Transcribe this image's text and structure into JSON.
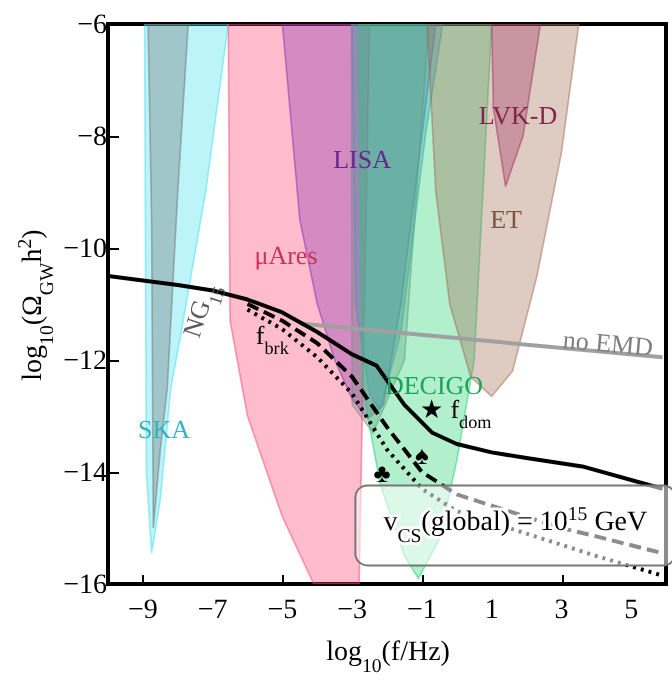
{
  "chart_data": {
    "type": "line",
    "xlabel": "log$_{10}$(f/Hz)",
    "ylabel": "log$_{10}$(Ω$_{GW}$h$^{2}$)",
    "xlim": [
      -10,
      6
    ],
    "ylim": [
      -16,
      -6
    ],
    "xticks": [
      -9,
      -7,
      -5,
      -3,
      -1,
      1,
      3,
      5
    ],
    "yticks": [
      -16,
      -14,
      -12,
      -10,
      -8,
      -6
    ],
    "grid": false,
    "series": [
      {
        "name": "SKA",
        "type": "area",
        "color": "#40e0f0",
        "x": [
          -8.95,
          -8.9,
          -8.75,
          -8.5,
          -8.2,
          -7.9,
          -7.2,
          -6.55
        ],
        "values": [
          -6,
          -14,
          -15.45,
          -14.5,
          -12.5,
          -11.5,
          -9,
          -6
        ]
      },
      {
        "name": "NG$_{15}$",
        "type": "area",
        "color": "#707070",
        "x": [
          -8.85,
          -8.75,
          -8.7,
          -8.5,
          -8.3,
          -8.0,
          -7.7
        ],
        "values": [
          -6,
          -9.5,
          -15,
          -13.6,
          -12.5,
          -9,
          -6
        ]
      },
      {
        "name": "μAres",
        "type": "area",
        "color": "#ff4070",
        "x": [
          -6.55,
          -6.5,
          -6,
          -5,
          -4.1,
          -2.8,
          -2.5
        ],
        "values": [
          -6,
          -11.3,
          -13,
          -14.8,
          -16,
          -16,
          -6
        ]
      },
      {
        "name": "LISA",
        "type": "area",
        "color": "#8030b0",
        "x": [
          -5,
          -4.5,
          -4,
          -3.5,
          -3,
          -2.55,
          -2.1,
          -1.6,
          -1,
          -0.6
        ],
        "values": [
          -6,
          -9.5,
          -11,
          -12,
          -12.7,
          -13.05,
          -12.8,
          -11,
          -8,
          -6
        ]
      },
      {
        "type": "area",
        "color": "#4090e0",
        "x": [
          -3,
          -2.9,
          -2.5,
          -2.2,
          -1.6,
          -0.9,
          -0.4
        ],
        "values": [
          -6,
          -11,
          -12.6,
          -12.9,
          -11.5,
          -8,
          -6
        ]
      },
      {
        "type": "area",
        "color": "#7a8a80",
        "x": [
          -3.02,
          -3,
          -2.4,
          -1.5,
          -0.8
        ],
        "values": [
          -6,
          -12.8,
          -13.3,
          -12,
          -6
        ]
      },
      {
        "name": "DECIGO",
        "type": "area",
        "color": "#20d070",
        "x": [
          -2.8,
          -2.7,
          -2.2,
          -1.5,
          -1.1,
          -0.5,
          0,
          0.5,
          1
        ],
        "values": [
          -6,
          -12.5,
          -14.2,
          -15.5,
          -15.9,
          -15.2,
          -13.8,
          -12,
          -6
        ]
      },
      {
        "name": "ET",
        "type": "area",
        "color": "#a06a50",
        "x": [
          -0.85,
          -0.6,
          -0.2,
          0.4,
          1,
          1.6,
          2.3,
          3,
          3.5
        ],
        "values": [
          -6,
          -9,
          -11,
          -12.3,
          -12.65,
          -12.2,
          -10.5,
          -8.3,
          -6
        ]
      },
      {
        "name": "LVK-D",
        "type": "area",
        "color": "#a03060",
        "x": [
          1,
          1.05,
          1.4,
          1.9,
          2.4
        ],
        "values": [
          -6,
          -7.5,
          -8.9,
          -8,
          -6
        ]
      },
      {
        "name": "no EMD",
        "type": "line",
        "color": "#a0a0a0",
        "line_style": "solid",
        "x": [
          -4.5,
          5.9
        ],
        "values": [
          -11.35,
          -11.95
        ]
      },
      {
        "color": "#000000",
        "line_style": "dashed",
        "x": [
          -6,
          -5,
          -4,
          -3,
          -2,
          -1,
          0,
          1,
          2,
          3,
          4,
          5.9
        ],
        "values": [
          -11.0,
          -11.3,
          -11.7,
          -12.3,
          -13.2,
          -14.0,
          -14.4,
          -14.6,
          -14.8,
          -15.0,
          -15.15,
          -15.45
        ]
      },
      {
        "color": "#000000",
        "line_style": "dotted",
        "x": [
          -6,
          -5,
          -4,
          -3,
          -2,
          -1,
          0,
          1,
          2,
          3,
          4,
          5.9
        ],
        "values": [
          -11.1,
          -11.45,
          -11.95,
          -12.6,
          -13.6,
          -14.3,
          -14.7,
          -14.9,
          -15.1,
          -15.3,
          -15.5,
          -15.85
        ]
      },
      {
        "color": "#000000",
        "line_style": "solid",
        "x": [
          -10,
          -9,
          -8,
          -7,
          -6,
          -5,
          -4,
          -3,
          -2.3,
          -1.5,
          -0.7,
          0,
          1,
          2,
          3.6,
          5.9
        ],
        "values": [
          -10.5,
          -10.58,
          -10.66,
          -10.76,
          -10.92,
          -11.15,
          -11.5,
          -11.9,
          -12.1,
          -12.8,
          -13.3,
          -13.5,
          -13.65,
          -13.75,
          -13.9,
          -14.3
        ]
      }
    ],
    "annotations": [
      {
        "text": "f$_{brk}$",
        "x": -5.29,
        "y": -11.57
      },
      {
        "text": "★ f$_{dom}$",
        "x": -0.03,
        "y": -12.9
      },
      {
        "text": "♣",
        "x": -2.14,
        "y": -14.04
      },
      {
        "text": "♠",
        "x": -1,
        "y": -13.71
      },
      "v$_{CS}$(global) = 10$^{15}$ GeV"
    ]
  }
}
